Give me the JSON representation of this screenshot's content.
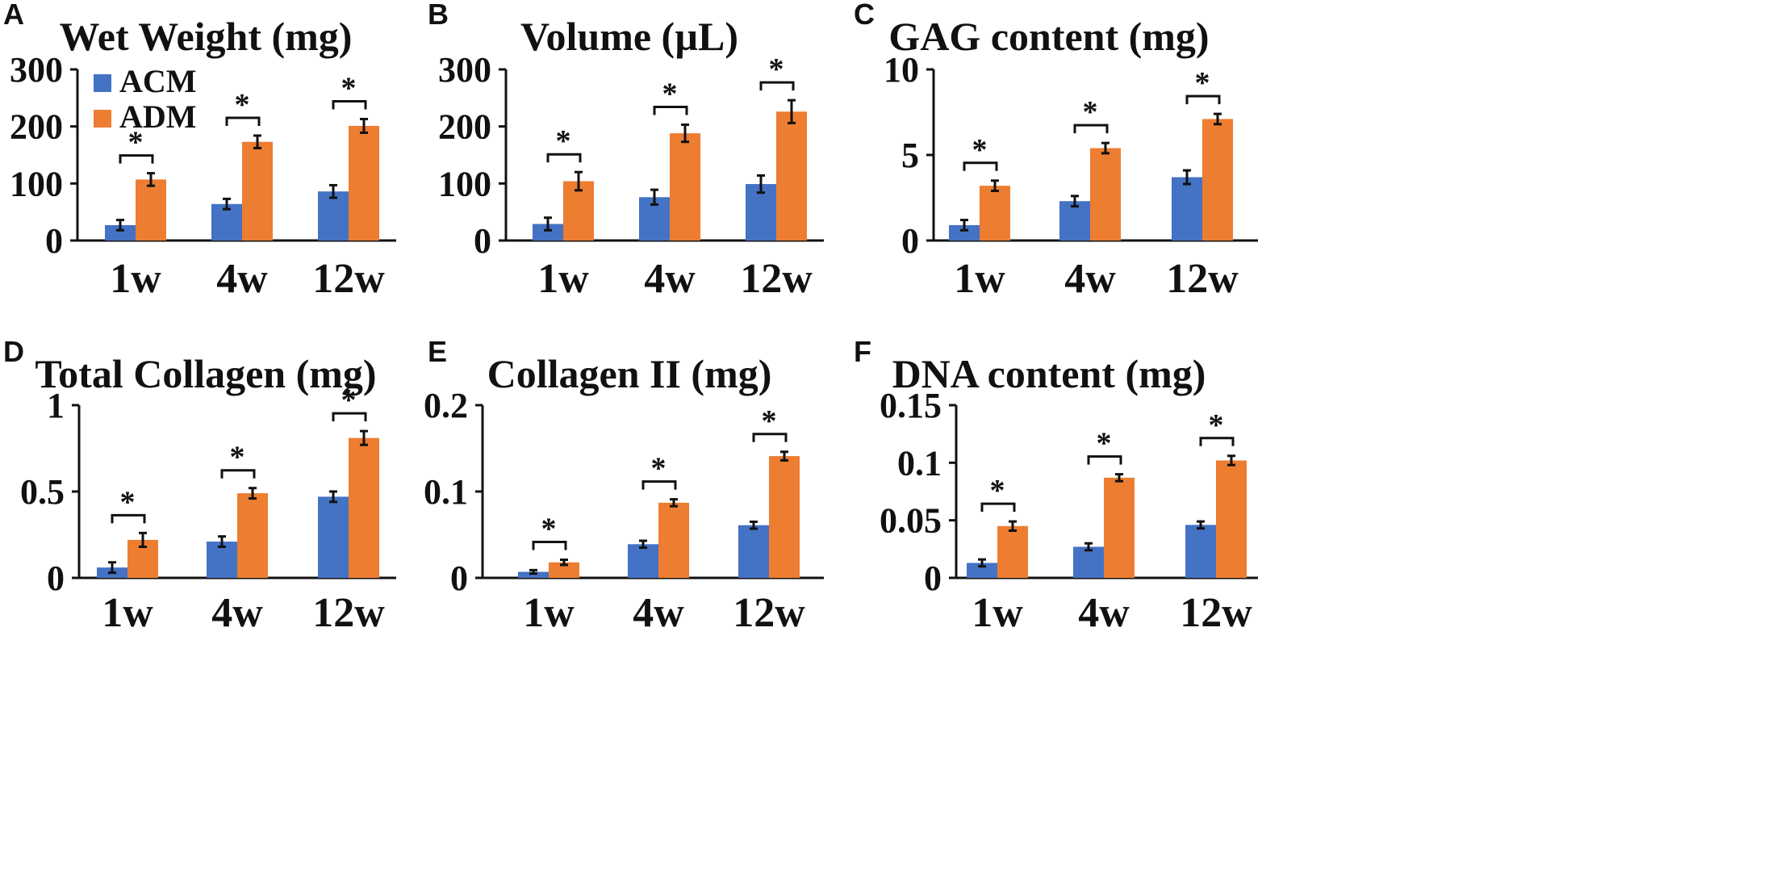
{
  "colors": {
    "acm": "#4472C4",
    "adm": "#ED7D31",
    "axis": "#111111"
  },
  "legend": [
    {
      "name": "ACM",
      "color": "#4472C4"
    },
    {
      "name": "ADM",
      "color": "#ED7D31"
    }
  ],
  "chart_data": [
    {
      "panel": "A",
      "type": "bar",
      "title": "Wet Weight (mg)",
      "categories": [
        "1w",
        "4w",
        "12w"
      ],
      "ylim": [
        0,
        300
      ],
      "ticks": [
        "0",
        "100",
        "200",
        "300"
      ],
      "tick_values": [
        0,
        100,
        200,
        300
      ],
      "series": [
        {
          "name": "ACM",
          "values": [
            27,
            64,
            86
          ],
          "errors": [
            9,
            9,
            11
          ]
        },
        {
          "name": "ADM",
          "values": [
            107,
            173,
            201
          ],
          "errors": [
            11,
            11,
            12
          ]
        }
      ],
      "significance": [
        "*",
        "*",
        "*"
      ],
      "legend": "top-left"
    },
    {
      "panel": "B",
      "type": "bar",
      "title": "Volume (µL)",
      "categories": [
        "1w",
        "4w",
        "12w"
      ],
      "ylim": [
        0,
        300
      ],
      "ticks": [
        "0",
        "100",
        "200",
        "300"
      ],
      "tick_values": [
        0,
        100,
        200,
        300
      ],
      "series": [
        {
          "name": "ACM",
          "values": [
            29,
            76,
            99
          ],
          "errors": [
            11,
            13,
            15
          ]
        },
        {
          "name": "ADM",
          "values": [
            104,
            188,
            226
          ],
          "errors": [
            16,
            15,
            20
          ]
        }
      ],
      "significance": [
        "*",
        "*",
        "*"
      ]
    },
    {
      "panel": "C",
      "type": "bar",
      "title": "GAG content (mg)",
      "categories": [
        "1w",
        "4w",
        "12w"
      ],
      "ylim": [
        0,
        10
      ],
      "ticks": [
        "0",
        "5",
        "10"
      ],
      "tick_values": [
        0,
        5,
        10
      ],
      "series": [
        {
          "name": "ACM",
          "values": [
            0.9,
            2.3,
            3.7
          ],
          "errors": [
            0.3,
            0.3,
            0.4
          ]
        },
        {
          "name": "ADM",
          "values": [
            3.2,
            5.4,
            7.1
          ],
          "errors": [
            0.3,
            0.3,
            0.3
          ]
        }
      ],
      "significance": [
        "*",
        "*",
        "*"
      ]
    },
    {
      "panel": "D",
      "type": "bar",
      "title": "Total Collagen (mg)",
      "categories": [
        "1w",
        "4w",
        "12w"
      ],
      "ylim": [
        0,
        1
      ],
      "ticks": [
        "0",
        "0.5",
        "1"
      ],
      "tick_values": [
        0,
        0.5,
        1
      ],
      "series": [
        {
          "name": "ACM",
          "values": [
            0.06,
            0.21,
            0.47
          ],
          "errors": [
            0.03,
            0.03,
            0.03
          ]
        },
        {
          "name": "ADM",
          "values": [
            0.22,
            0.49,
            0.81
          ],
          "errors": [
            0.04,
            0.03,
            0.04
          ]
        }
      ],
      "significance": [
        "*",
        "*",
        "*"
      ]
    },
    {
      "panel": "E",
      "type": "bar",
      "title": "Collagen II (mg)",
      "categories": [
        "1w",
        "4w",
        "12w"
      ],
      "ylim": [
        0,
        0.2
      ],
      "ticks": [
        "0",
        "0.1",
        "0.2"
      ],
      "tick_values": [
        0,
        0.1,
        0.2
      ],
      "series": [
        {
          "name": "ACM",
          "values": [
            0.007,
            0.039,
            0.061
          ],
          "errors": [
            0.002,
            0.004,
            0.004
          ]
        },
        {
          "name": "ADM",
          "values": [
            0.018,
            0.087,
            0.141
          ],
          "errors": [
            0.003,
            0.004,
            0.005
          ]
        }
      ],
      "significance": [
        "*",
        "*",
        "*"
      ]
    },
    {
      "panel": "F",
      "type": "bar",
      "title": "DNA content (mg)",
      "categories": [
        "1w",
        "4w",
        "12w"
      ],
      "ylim": [
        0,
        0.15
      ],
      "ticks": [
        "0",
        "0.05",
        "0.1",
        "0.15"
      ],
      "tick_values": [
        0,
        0.05,
        0.1,
        0.15
      ],
      "series": [
        {
          "name": "ACM",
          "values": [
            0.013,
            0.027,
            0.046
          ],
          "errors": [
            0.003,
            0.003,
            0.003
          ]
        },
        {
          "name": "ADM",
          "values": [
            0.045,
            0.087,
            0.102
          ],
          "errors": [
            0.004,
            0.003,
            0.004
          ]
        }
      ],
      "significance": [
        "*",
        "*",
        "*"
      ]
    }
  ]
}
